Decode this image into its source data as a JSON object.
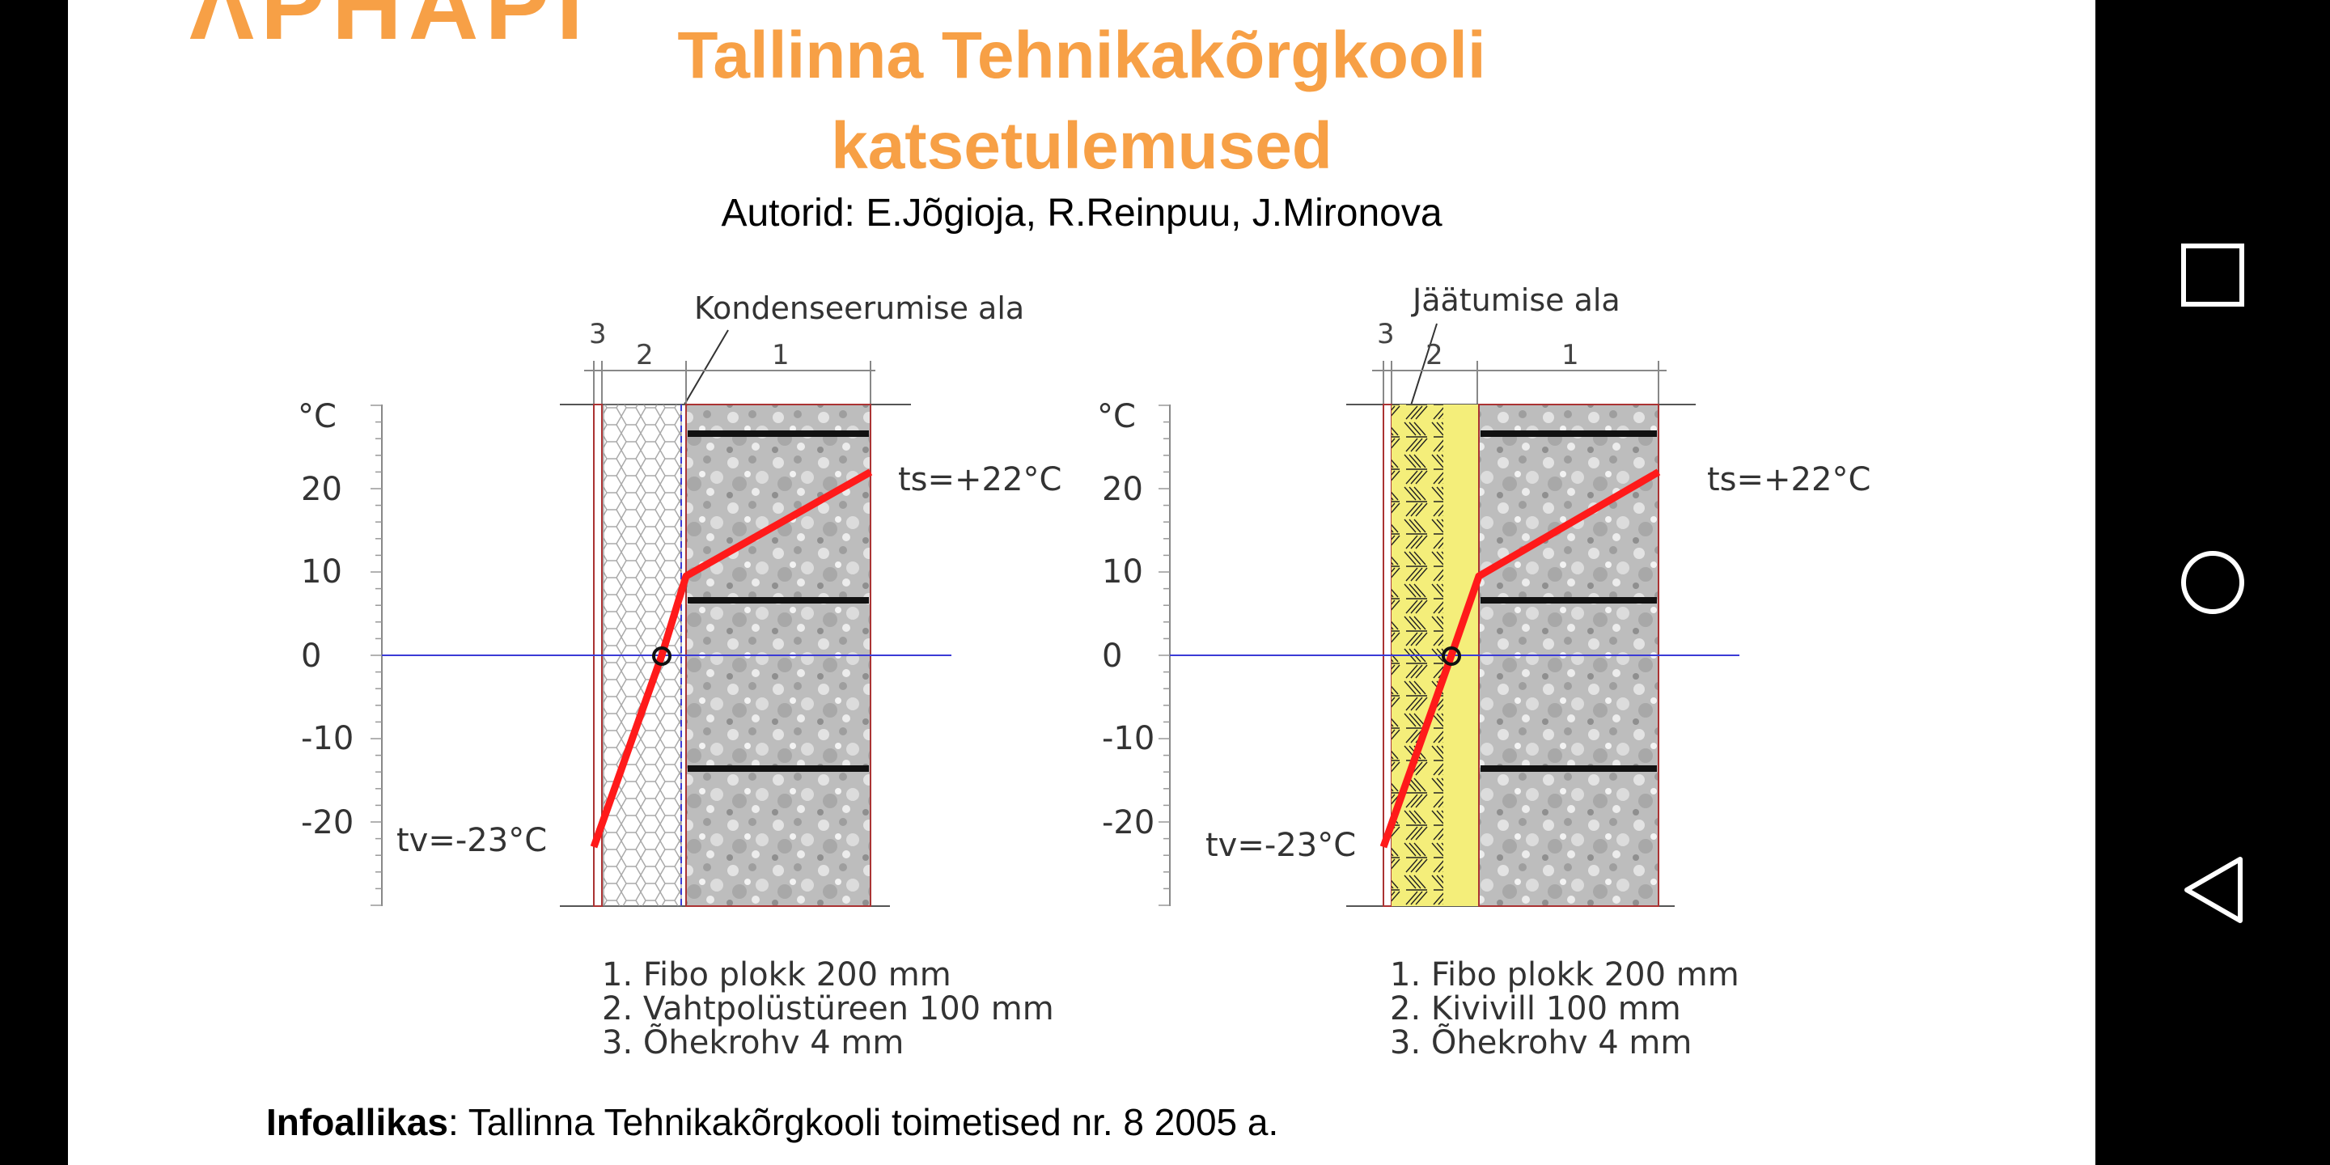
{
  "slide": {
    "title_overflow": "ΛΡΗΑΡΙ",
    "title_line1": "Tallinna Tehnikakõrgkooli",
    "title_line2": "katsetulemused",
    "authors": "Autorid: E.Jõgioja, R.Reinpuu, J.Mironova",
    "source_label": "Infoallikas",
    "source_text": ": Tallinna Tehnikakõrgkooli toimetised nr. 8 2005 a."
  },
  "left_diagram": {
    "zone_label": "Kondenseerumise ala",
    "unit": "°C",
    "y_ticks": [
      "20",
      "10",
      "0",
      "-10",
      "-20"
    ],
    "layer_numbers": [
      "3",
      "2",
      "1"
    ],
    "ts_label": "ts=+22°C",
    "tv_label": "tv=-23°C",
    "legend": [
      "1. Fibo plokk 200 mm",
      "2. Vahtpolüstüreen 100 mm",
      "3. Õhekrohv 4 mm"
    ]
  },
  "right_diagram": {
    "zone_label": "Jäätumise ala",
    "unit": "°C",
    "y_ticks": [
      "20",
      "10",
      "0",
      "-10",
      "-20"
    ],
    "layer_numbers": [
      "3",
      "2",
      "1"
    ],
    "ts_label": "ts=+22°C",
    "tv_label": "tv=-23°C",
    "legend": [
      "1. Fibo plokk 200 mm",
      "2. Kivivill 100 mm",
      "3. Õhekrohv 4 mm"
    ]
  },
  "chart_data": [
    {
      "type": "line",
      "title": "Kondenseerumise ala",
      "ylabel": "°C",
      "ylim": [
        -30,
        30
      ],
      "series": [
        {
          "name": "",
          "values": [
            -23,
            0,
            9.5,
            22
          ]
        }
      ]
    },
    {
      "type": "line",
      "title": "Jäätumise ala",
      "ylabel": "°C",
      "ylim": [
        -30,
        30
      ],
      "series": [
        {
          "name": "",
          "values": [
            -23,
            0,
            9.5,
            22
          ]
        }
      ]
    }
  ],
  "nav": {
    "recents": "square-icon",
    "home": "circle-icon",
    "back": "triangle-back-icon"
  },
  "colors": {
    "title": "#f7a046",
    "temperature_line": "#ff1a1a",
    "zero_line": "#3b3bd6",
    "insulation_yellow": "#f4ee7a"
  }
}
